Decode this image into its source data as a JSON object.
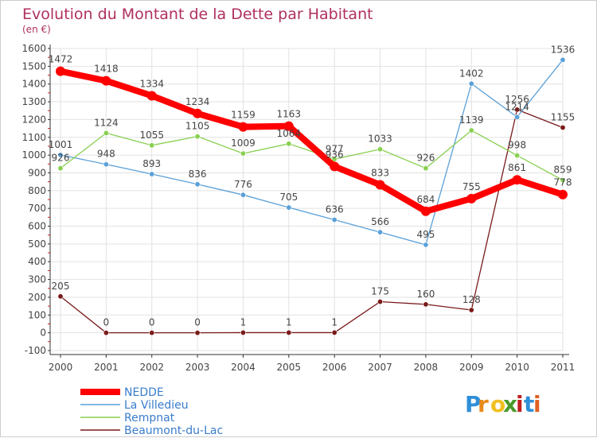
{
  "chart_data": {
    "type": "line",
    "title": "Evolution du Montant de la Dette par Habitant",
    "subtitle": "(en €)",
    "xlabel": "",
    "ylabel": "",
    "categories": [
      "2000",
      "2001",
      "2002",
      "2003",
      "2004",
      "2005",
      "2006",
      "2007",
      "2008",
      "2009",
      "2010",
      "2011"
    ],
    "ylim": [
      -100,
      1600
    ],
    "yticks": [
      -100,
      0,
      100,
      200,
      300,
      400,
      500,
      600,
      700,
      800,
      900,
      1000,
      1100,
      1200,
      1300,
      1400,
      1500,
      1600
    ],
    "grid": true,
    "legend_position": "bottom-left",
    "series": [
      {
        "name": "NEDDE",
        "color": "#ff0000",
        "values": [
          1472,
          1418,
          1334,
          1234,
          1159,
          1163,
          936,
          833,
          684,
          755,
          861,
          778
        ]
      },
      {
        "name": "La Villedieu",
        "color": "#5aa0d8",
        "values": [
          1001,
          948,
          893,
          836,
          776,
          705,
          636,
          566,
          495,
          1402,
          1214,
          1536
        ]
      },
      {
        "name": "Rempnat",
        "color": "#88d050",
        "values": [
          926,
          1124,
          1055,
          1105,
          1009,
          1064,
          977,
          1033,
          926,
          1139,
          998,
          859
        ]
      },
      {
        "name": "Beaumont-du-Lac",
        "color": "#7a1a1a",
        "values": [
          205,
          0,
          0,
          0,
          1,
          1,
          1,
          175,
          160,
          128,
          1256,
          1155
        ]
      }
    ]
  },
  "brand": {
    "letters": [
      "P",
      "r",
      "o",
      "x",
      "i",
      "t",
      "i"
    ],
    "colors": [
      "#2f8fd8",
      "#e88a1a",
      "#f0c020",
      "#4a9a2a",
      "#c02020",
      "#2f8fd8",
      "#e06020"
    ]
  }
}
